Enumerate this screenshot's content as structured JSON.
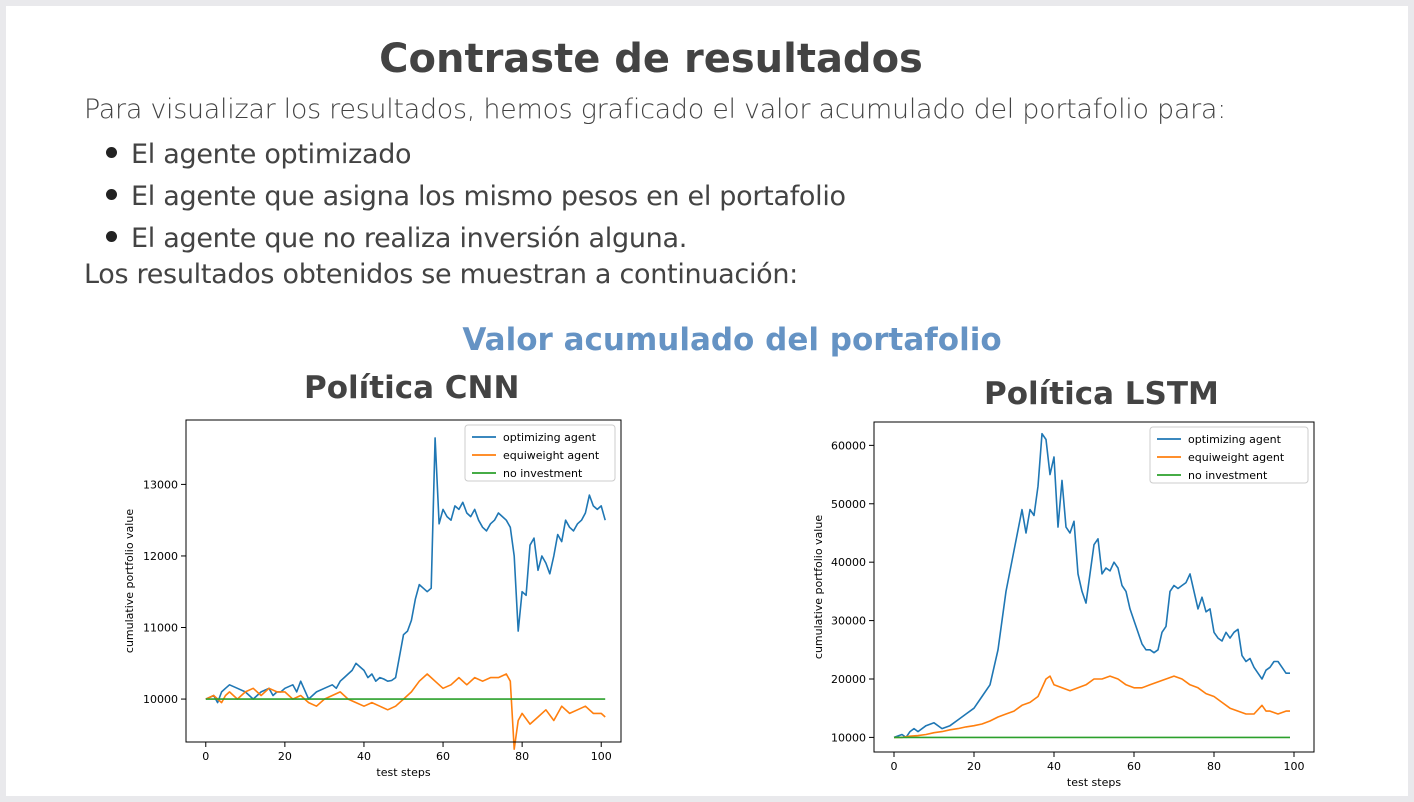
{
  "heading": "Contraste de resultados",
  "intro": "Para visualizar los resultados, hemos  graficado el valor acumulado del portafolio para:",
  "bullets": [
    "El agente optimizado",
    "El agente que asigna los mismo pesos en el portafolio",
    "El agente que no realiza inversión alguna."
  ],
  "outro": "Los resultados obtenidos se muestran a continuación:",
  "subtitle": "Valor acumulado del portafolio",
  "colors": {
    "optimizing": "#1f77b4",
    "equiweight": "#ff7f0e",
    "noinvest": "#2ca02c",
    "subtitle": "#6593c4"
  },
  "chart_data": [
    {
      "type": "line",
      "title": "Política CNN",
      "xlabel": "test steps",
      "ylabel": "cumulative portfolio value",
      "xlim": [
        -5,
        105
      ],
      "ylim": [
        9400,
        13900
      ],
      "xticks": [
        0,
        20,
        40,
        60,
        80,
        100
      ],
      "yticks": [
        10000,
        11000,
        12000,
        13000
      ],
      "legend": "top-right",
      "series": [
        {
          "name": "optimizing agent",
          "x": [
            0,
            2,
            3,
            4,
            5,
            6,
            8,
            10,
            11,
            12,
            14,
            16,
            17,
            18,
            19,
            20,
            22,
            23,
            24,
            26,
            28,
            30,
            32,
            33,
            34,
            35,
            36,
            37,
            38,
            39,
            40,
            41,
            42,
            43,
            44,
            45,
            46,
            47,
            48,
            50,
            51,
            52,
            53,
            54,
            55,
            56,
            57,
            58,
            59,
            60,
            61,
            62,
            63,
            64,
            65,
            66,
            67,
            68,
            69,
            70,
            71,
            72,
            73,
            74,
            75,
            76,
            77,
            78,
            79,
            80,
            81,
            82,
            83,
            84,
            85,
            86,
            87,
            88,
            89,
            90,
            91,
            92,
            93,
            94,
            95,
            96,
            97,
            98,
            99,
            100,
            101
          ],
          "values": [
            10000,
            10050,
            9950,
            10100,
            10150,
            10200,
            10150,
            10100,
            10050,
            10000,
            10100,
            10150,
            10050,
            10100,
            10100,
            10150,
            10200,
            10100,
            10250,
            10000,
            10100,
            10150,
            10200,
            10150,
            10250,
            10300,
            10350,
            10400,
            10500,
            10450,
            10400,
            10300,
            10350,
            10250,
            10300,
            10280,
            10250,
            10260,
            10300,
            10900,
            10950,
            11100,
            11400,
            11600,
            11550,
            11500,
            11550,
            13650,
            12450,
            12650,
            12550,
            12500,
            12700,
            12650,
            12750,
            12600,
            12550,
            12650,
            12500,
            12400,
            12350,
            12450,
            12500,
            12600,
            12550,
            12500,
            12400,
            12000,
            10950,
            11500,
            11450,
            12150,
            12250,
            11800,
            12000,
            11900,
            11750,
            12000,
            12300,
            12200,
            12500,
            12400,
            12350,
            12450,
            12500,
            12600,
            12850,
            12700,
            12650,
            12700,
            12500
          ]
        },
        {
          "name": "equiweight agent",
          "x": [
            0,
            2,
            3,
            4,
            5,
            6,
            8,
            10,
            12,
            14,
            16,
            18,
            20,
            22,
            24,
            26,
            28,
            30,
            32,
            34,
            36,
            38,
            40,
            42,
            44,
            46,
            48,
            50,
            52,
            54,
            56,
            57,
            58,
            60,
            62,
            64,
            66,
            68,
            70,
            72,
            74,
            76,
            77,
            78,
            79,
            80,
            82,
            84,
            86,
            88,
            90,
            92,
            94,
            96,
            98,
            100,
            101
          ],
          "values": [
            10000,
            10050,
            10000,
            9950,
            10050,
            10100,
            10000,
            10100,
            10150,
            10050,
            10150,
            10100,
            10100,
            10000,
            10050,
            9950,
            9900,
            10000,
            10050,
            10100,
            10000,
            9950,
            9900,
            9950,
            9900,
            9850,
            9900,
            10000,
            10100,
            10250,
            10350,
            10300,
            10250,
            10150,
            10200,
            10300,
            10200,
            10300,
            10250,
            10300,
            10300,
            10350,
            10250,
            9300,
            9700,
            9800,
            9650,
            9750,
            9850,
            9700,
            9900,
            9800,
            9850,
            9900,
            9800,
            9800,
            9750
          ]
        },
        {
          "name": "no investment",
          "x": [
            0,
            101
          ],
          "values": [
            10000,
            10000
          ]
        }
      ]
    },
    {
      "type": "line",
      "title": "Política  LSTM",
      "xlabel": "test steps",
      "ylabel": "cumulative portfolio value",
      "xlim": [
        -5,
        105
      ],
      "ylim": [
        7500,
        64000
      ],
      "xticks": [
        0,
        20,
        40,
        60,
        80,
        100
      ],
      "yticks": [
        10000,
        20000,
        30000,
        40000,
        50000,
        60000
      ],
      "legend": "top-right",
      "series": [
        {
          "name": "optimizing agent",
          "x": [
            0,
            2,
            3,
            4,
            5,
            6,
            8,
            10,
            12,
            14,
            16,
            18,
            20,
            22,
            24,
            26,
            28,
            30,
            32,
            33,
            34,
            35,
            36,
            37,
            38,
            39,
            40,
            41,
            42,
            43,
            44,
            45,
            46,
            47,
            48,
            49,
            50,
            51,
            52,
            53,
            54,
            55,
            56,
            57,
            58,
            59,
            60,
            61,
            62,
            63,
            64,
            65,
            66,
            67,
            68,
            69,
            70,
            71,
            72,
            73,
            74,
            75,
            76,
            77,
            78,
            79,
            80,
            81,
            82,
            83,
            84,
            85,
            86,
            87,
            88,
            89,
            90,
            91,
            92,
            93,
            94,
            95,
            96,
            97,
            98,
            99
          ],
          "values": [
            10000,
            10500,
            10000,
            11000,
            11500,
            11000,
            12000,
            12500,
            11500,
            12000,
            13000,
            14000,
            15000,
            17000,
            19000,
            25000,
            35000,
            42000,
            49000,
            45000,
            49000,
            48000,
            53000,
            62000,
            61000,
            55000,
            58000,
            46000,
            54000,
            46000,
            45000,
            47000,
            38000,
            35000,
            33000,
            38000,
            43000,
            44000,
            38000,
            39000,
            38500,
            40000,
            39000,
            36000,
            35000,
            32000,
            30000,
            28000,
            26000,
            25000,
            25000,
            24500,
            25000,
            28000,
            29000,
            35000,
            36000,
            35500,
            36000,
            36500,
            38000,
            35000,
            32000,
            34000,
            31500,
            32000,
            28000,
            27000,
            26500,
            28000,
            27000,
            28000,
            28500,
            24000,
            23000,
            23500,
            22000,
            21000,
            20000,
            21500,
            22000,
            23000,
            23000,
            22000,
            21000,
            21000
          ]
        },
        {
          "name": "equiweight agent",
          "x": [
            0,
            2,
            4,
            6,
            8,
            10,
            12,
            14,
            16,
            18,
            20,
            22,
            24,
            26,
            28,
            30,
            32,
            34,
            36,
            37,
            38,
            39,
            40,
            42,
            44,
            46,
            48,
            50,
            52,
            54,
            56,
            58,
            60,
            62,
            64,
            66,
            68,
            70,
            72,
            74,
            76,
            78,
            80,
            82,
            84,
            86,
            88,
            90,
            92,
            93,
            94,
            96,
            98,
            99
          ],
          "values": [
            10000,
            10000,
            10200,
            10300,
            10500,
            10800,
            11000,
            11300,
            11500,
            11800,
            12000,
            12300,
            12800,
            13500,
            14000,
            14500,
            15500,
            16000,
            17000,
            18500,
            20000,
            20500,
            19000,
            18500,
            18000,
            18500,
            19000,
            20000,
            20000,
            20500,
            20000,
            19000,
            18500,
            18500,
            19000,
            19500,
            20000,
            20500,
            20000,
            19000,
            18500,
            17500,
            17000,
            16000,
            15000,
            14500,
            14000,
            14000,
            15500,
            14500,
            14500,
            14000,
            14500,
            14500
          ]
        },
        {
          "name": "no investment",
          "x": [
            0,
            99
          ],
          "values": [
            10000,
            10000
          ]
        }
      ]
    }
  ]
}
